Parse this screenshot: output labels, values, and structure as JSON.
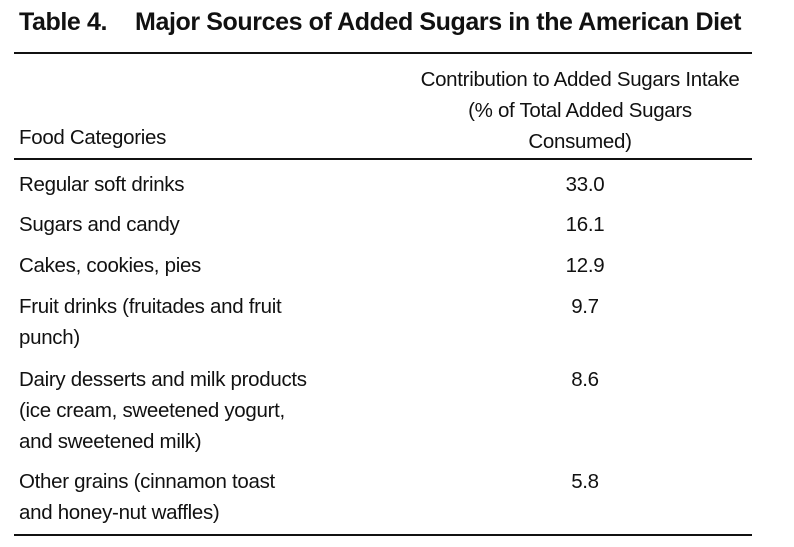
{
  "table": {
    "label": "Table 4.",
    "title": "Major Sources of Added Sugars in the American Diet"
  },
  "header": {
    "food_column": "Food Categories",
    "contribution_column_lines": [
      "Contribution to Added Sugars Intake",
      "(% of Total Added Sugars",
      "Consumed)"
    ]
  },
  "rows": [
    {
      "label_lines": [
        "Regular soft drinks"
      ],
      "value": "33.0"
    },
    {
      "label_lines": [
        "Sugars and candy"
      ],
      "value": "16.1"
    },
    {
      "label_lines": [
        "Cakes, cookies, pies"
      ],
      "value": "12.9"
    },
    {
      "label_lines": [
        "Fruit drinks (fruitades and fruit",
        "punch)"
      ],
      "value": "9.7"
    },
    {
      "label_lines": [
        "Dairy desserts and milk products",
        "(ice cream, sweetened yogurt,",
        "and sweetened milk)"
      ],
      "value": "8.6"
    },
    {
      "label_lines": [
        "Other grains (cinnamon toast",
        "and honey-nut waffles)"
      ],
      "value": "5.8"
    }
  ]
}
